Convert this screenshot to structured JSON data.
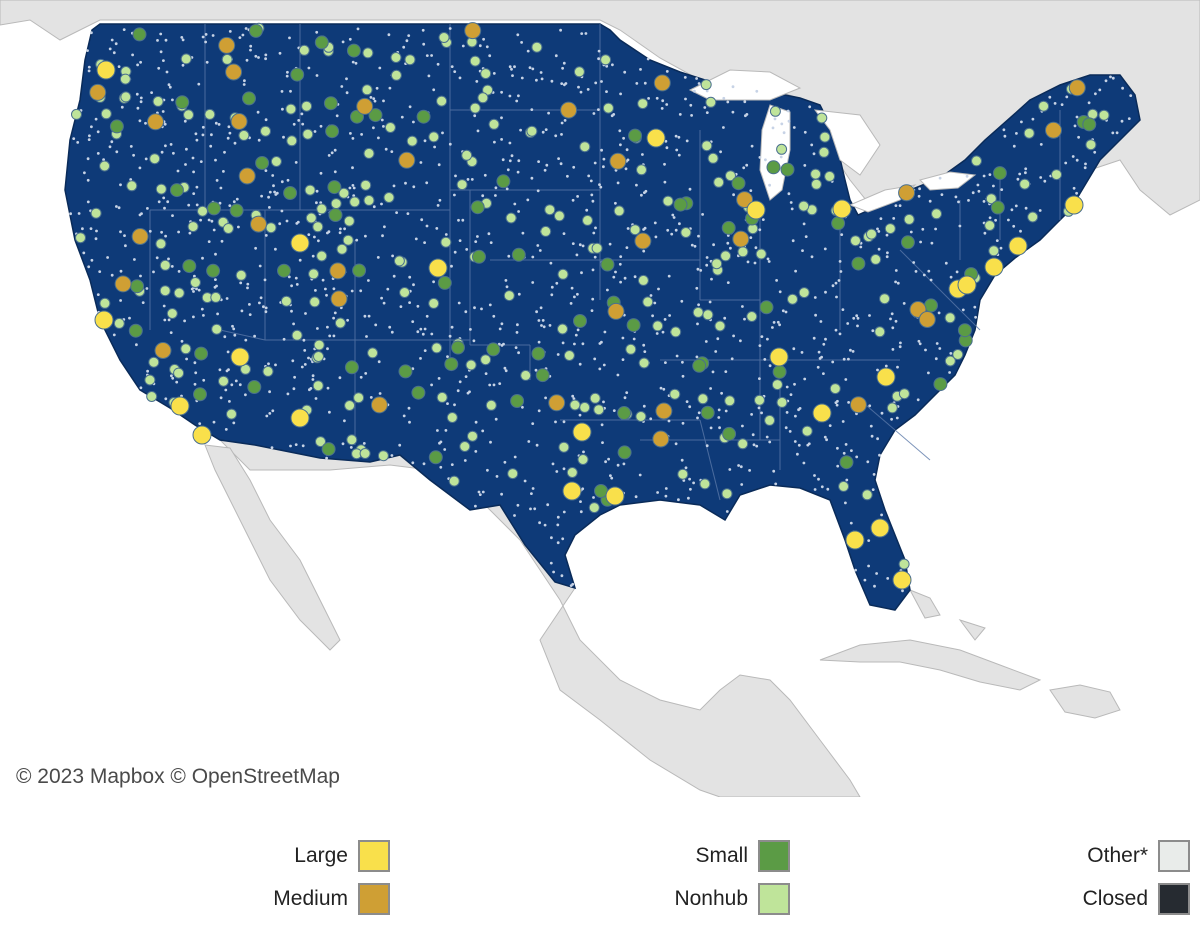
{
  "map": {
    "attribution": "© 2023 Mapbox  © OpenStreetMap",
    "colors": {
      "water": "#ffffff",
      "land": "#e3e3e3",
      "land_border": "#b9b9b9",
      "us_fill": "#0e3a78",
      "state_border": "#5a78a8",
      "small_dot": "#c7d3e6"
    }
  },
  "legend": {
    "items": [
      {
        "label": "Large",
        "color": "#f9e04b",
        "swatch": "large-swatch"
      },
      {
        "label": "Medium",
        "color": "#cf9f34",
        "swatch": "medium-swatch"
      },
      {
        "label": "Small",
        "color": "#5b9b45",
        "swatch": "small-swatch"
      },
      {
        "label": "Nonhub",
        "color": "#bfe49a",
        "swatch": "nonhub-swatch"
      },
      {
        "label": "Other*",
        "color": "#e9ecea",
        "swatch": "other-swatch"
      },
      {
        "label": "Closed",
        "color": "#262b31",
        "swatch": "closed-swatch"
      }
    ]
  }
}
